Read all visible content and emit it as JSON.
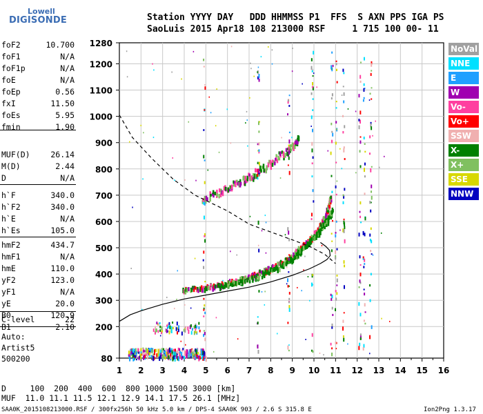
{
  "logo": {
    "line1": "Lowell",
    "line2": "DIGISONDE"
  },
  "header": {
    "line1": "Station YYYY DAY   DDD HHMMSS P1  FFS  S AXN PPS IGA PS",
    "line2": "SaoLuis 2015 Apr18 108 213000 RSF     1 715 100 00- 11"
  },
  "params_group1": [
    {
      "label": "foF2",
      "value": "10.700"
    },
    {
      "label": "foF1",
      "value": "N/A"
    },
    {
      "label": "foF1p",
      "value": "N/A"
    },
    {
      "label": "foE",
      "value": "N/A"
    },
    {
      "label": "foEp",
      "value": "0.56"
    },
    {
      "label": "fxI",
      "value": "11.50"
    },
    {
      "label": "foEs",
      "value": "5.95"
    },
    {
      "label": "fmin",
      "value": "1.90"
    }
  ],
  "params_group2": [
    {
      "label": "MUF(D)",
      "value": "26.14"
    },
    {
      "label": "M(D)",
      "value": "2.44"
    },
    {
      "label": "D",
      "value": "N/A"
    }
  ],
  "params_group3": [
    {
      "label": "h`F",
      "value": "340.0"
    },
    {
      "label": "h`F2",
      "value": "340.0"
    },
    {
      "label": "h`E",
      "value": "N/A"
    },
    {
      "label": "h`Es",
      "value": "105.0"
    }
  ],
  "params_group4": [
    {
      "label": "hmF2",
      "value": "434.7"
    },
    {
      "label": "hmF1",
      "value": "N/A"
    },
    {
      "label": "hmE",
      "value": "110.0"
    },
    {
      "label": "yF2",
      "value": "123.0"
    },
    {
      "label": "yF1",
      "value": "N/A"
    },
    {
      "label": "yE",
      "value": "20.0"
    },
    {
      "label": "B0",
      "value": "120.9"
    },
    {
      "label": "B1",
      "value": "2.10"
    }
  ],
  "clevel": {
    "label": "C-level",
    "value": "22"
  },
  "auto": {
    "line1": "Auto:",
    "line2": "Artist5",
    "line3": "500200"
  },
  "legend": [
    {
      "label": "NoVal",
      "color": "#a0a0a0"
    },
    {
      "label": "NNE",
      "color": "#00e0ff"
    },
    {
      "label": "E",
      "color": "#20a0ff"
    },
    {
      "label": "W",
      "color": "#a000b0"
    },
    {
      "label": "Vo-",
      "color": "#ff40a0"
    },
    {
      "label": "Vo+",
      "color": "#ff0000"
    },
    {
      "label": "SSW",
      "color": "#f0b0b0"
    },
    {
      "label": "X-",
      "color": "#008000"
    },
    {
      "label": "X+",
      "color": "#80c060"
    },
    {
      "label": "SSE",
      "color": "#d8d800"
    },
    {
      "label": "NNW",
      "color": "#0000c0"
    }
  ],
  "chart_data": {
    "type": "scatter",
    "xlim": [
      1,
      16
    ],
    "ylim": [
      80,
      1280
    ],
    "xticks": [
      "1",
      "2",
      "3",
      "4",
      "5",
      "6",
      "7",
      "8",
      "9",
      "10",
      "11",
      "12",
      "13",
      "14",
      "15",
      "16"
    ],
    "yticks": [
      "80",
      "200",
      "300",
      "400",
      "500",
      "600",
      "700",
      "800",
      "900",
      "1000",
      "1100",
      "1200",
      "1280"
    ],
    "trace_f2_o": {
      "x": [
        3.9,
        4.5,
        5.0,
        5.5,
        6.0,
        6.5,
        7.0,
        7.5,
        8.0,
        8.5,
        9.0,
        9.5,
        10.0,
        10.3,
        10.5,
        10.65,
        10.75
      ],
      "y": [
        345,
        350,
        355,
        362,
        372,
        382,
        395,
        410,
        428,
        450,
        478,
        515,
        555,
        590,
        620,
        660,
        700
      ]
    },
    "trace_f2_x": {
      "x": [
        5.6,
        6.5,
        7.5,
        8.5,
        9.0,
        9.5,
        10.0,
        10.4,
        10.6,
        10.85
      ],
      "y": [
        360,
        375,
        398,
        440,
        465,
        505,
        545,
        590,
        610,
        650
      ]
    },
    "trace_f2_multi": {
      "x": [
        4.8,
        5.5,
        6.0,
        6.5,
        7.0,
        7.5,
        8.0,
        8.5,
        9.0,
        9.3
      ],
      "y": [
        690,
        715,
        735,
        755,
        775,
        800,
        830,
        860,
        890,
        930
      ]
    },
    "profile_solid": {
      "x": [
        1.0,
        1.5,
        2.0,
        3.0,
        4.0,
        5.0,
        6.0,
        7.0,
        8.0,
        9.0,
        9.8,
        10.3,
        10.6,
        10.75,
        10.72,
        10.55,
        10.3
      ],
      "y": [
        220,
        245,
        260,
        285,
        305,
        320,
        335,
        350,
        370,
        395,
        420,
        440,
        455,
        470,
        490,
        505,
        520
      ]
    },
    "profile_dashed": {
      "x": [
        1.0,
        1.6,
        2.5,
        3.5,
        4.5,
        5.0,
        6.0,
        7.0,
        8.0,
        9.0,
        9.8,
        10.5,
        11.0
      ],
      "y": [
        1005,
        920,
        840,
        760,
        700,
        680,
        640,
        590,
        560,
        530,
        505,
        475,
        440
      ]
    }
  },
  "footer": {
    "line1": "D     100  200  400  600  800 1000 1500 3000 [km]",
    "line2": "MUF  11.0 11.1 11.5 12.1 12.9 14.1 17.5 26.1 [MHz]",
    "line3": "SAA0K_2015108213000.RSF / 300fx256h 50 kHz 5.0 km / DPS-4 SAA0K 903 / 2.6 S 315.8 E",
    "version": "Ion2Png 1.3.17"
  }
}
